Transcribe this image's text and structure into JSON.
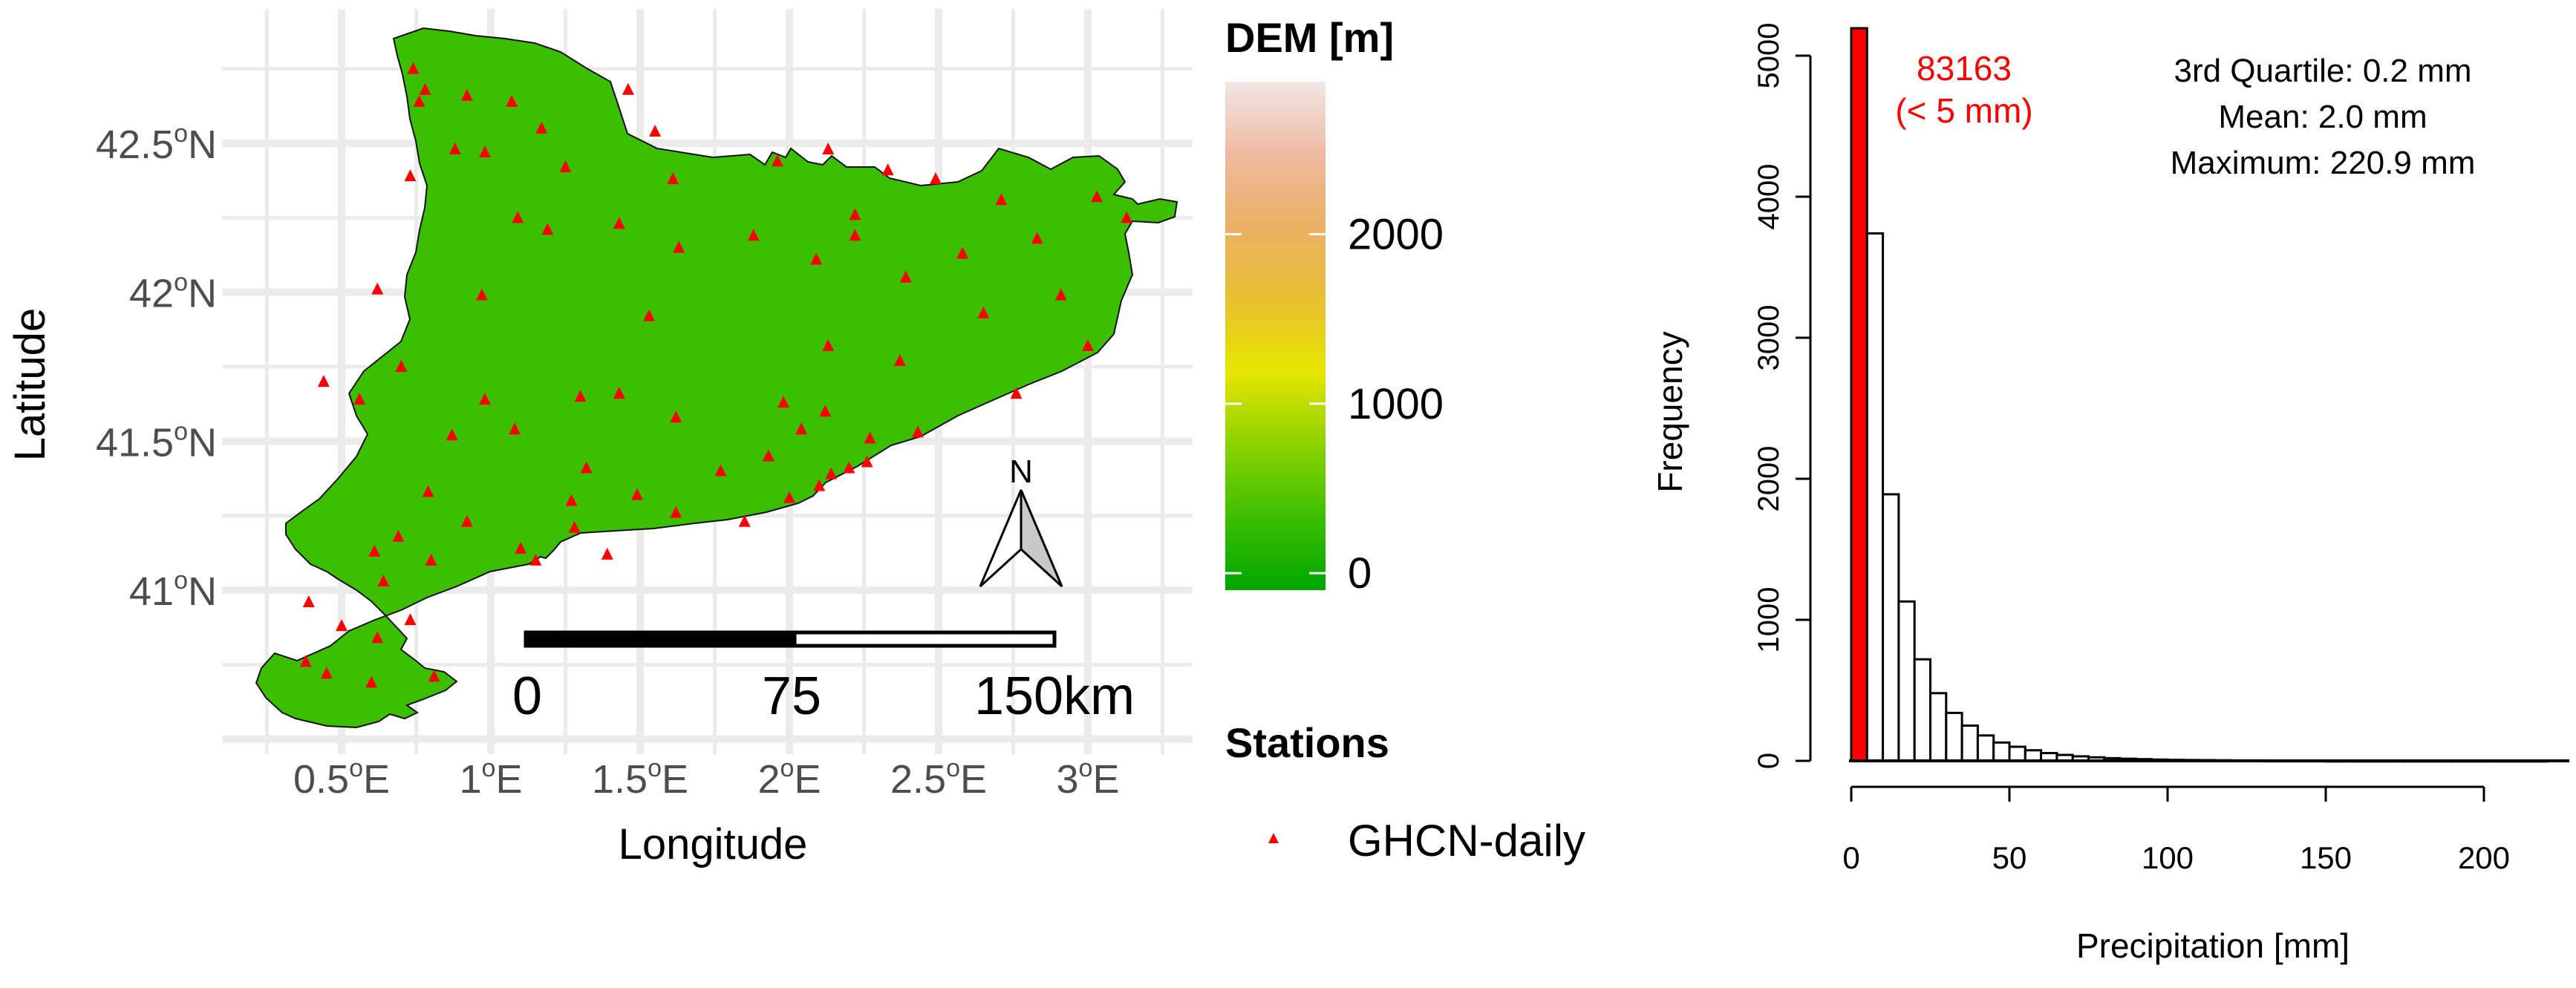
{
  "map_panel": {
    "xlabel": "Longitude",
    "ylabel": "Latitude",
    "lon_ticks": [
      {
        "value": 0.5,
        "label": "0.5",
        "unit": "E"
      },
      {
        "value": 1.0,
        "label": "1",
        "unit": "E"
      },
      {
        "value": 1.5,
        "label": "1.5",
        "unit": "E"
      },
      {
        "value": 2.0,
        "label": "2",
        "unit": "E"
      },
      {
        "value": 2.5,
        "label": "2.5",
        "unit": "E"
      },
      {
        "value": 3.0,
        "label": "3",
        "unit": "E"
      }
    ],
    "lat_ticks": [
      {
        "value": 41.0,
        "label": "41",
        "unit": "N"
      },
      {
        "value": 41.5,
        "label": "41.5",
        "unit": "N"
      },
      {
        "value": 42.0,
        "label": "42",
        "unit": "N"
      },
      {
        "value": 42.5,
        "label": "42.5",
        "unit": "N"
      }
    ],
    "degree_symbol": "o",
    "xlim": [
      0.1,
      3.35
    ],
    "ylim": [
      40.45,
      42.95
    ],
    "scale_bar_labels": [
      "0",
      "75",
      "150km"
    ],
    "north_arrow_label": "N",
    "background_color": "#ffffff",
    "grid_color": "#ebebeb",
    "dem_legend": {
      "title": "DEM [m]",
      "ticks": [
        0,
        1000,
        2000
      ],
      "range": [
        -100,
        2900
      ],
      "colors": [
        "#00a600",
        "#3cbf00",
        "#8bd200",
        "#e6e600",
        "#e8c032",
        "#ebb064",
        "#eeb99f",
        "#f1e8e6"
      ]
    },
    "stations_legend": {
      "title": "Stations",
      "label": "GHCN-daily",
      "marker_color": "#ff0000"
    },
    "stations": [
      [
        0.74,
        42.75
      ],
      [
        0.76,
        42.64
      ],
      [
        0.78,
        42.68
      ],
      [
        0.92,
        42.66
      ],
      [
        1.07,
        42.64
      ],
      [
        1.17,
        42.55
      ],
      [
        0.88,
        42.48
      ],
      [
        1.46,
        42.68
      ],
      [
        0.98,
        42.47
      ],
      [
        1.55,
        42.54
      ],
      [
        1.25,
        42.42
      ],
      [
        1.61,
        42.38
      ],
      [
        1.96,
        42.44
      ],
      [
        2.13,
        42.48
      ],
      [
        2.33,
        42.41
      ],
      [
        2.49,
        42.38
      ],
      [
        2.22,
        42.26
      ],
      [
        0.73,
        42.39
      ],
      [
        1.09,
        42.25
      ],
      [
        1.43,
        42.23
      ],
      [
        1.63,
        42.15
      ],
      [
        1.88,
        42.19
      ],
      [
        2.09,
        42.11
      ],
      [
        2.22,
        42.19
      ],
      [
        2.58,
        42.13
      ],
      [
        2.71,
        42.31
      ],
      [
        2.83,
        42.18
      ],
      [
        3.13,
        42.25
      ],
      [
        3.03,
        42.32
      ],
      [
        2.39,
        42.05
      ],
      [
        2.65,
        41.93
      ],
      [
        2.91,
        41.99
      ],
      [
        3.0,
        41.82
      ],
      [
        0.62,
        42.01
      ],
      [
        0.97,
        41.99
      ],
      [
        1.53,
        41.92
      ],
      [
        1.19,
        42.21
      ],
      [
        2.13,
        41.82
      ],
      [
        2.37,
        41.77
      ],
      [
        2.76,
        41.66
      ],
      [
        0.44,
        41.7
      ],
      [
        0.56,
        41.64
      ],
      [
        0.7,
        41.75
      ],
      [
        0.98,
        41.64
      ],
      [
        1.3,
        41.65
      ],
      [
        1.43,
        41.66
      ],
      [
        1.62,
        41.58
      ],
      [
        1.98,
        41.63
      ],
      [
        2.12,
        41.6
      ],
      [
        2.27,
        41.51
      ],
      [
        2.43,
        41.53
      ],
      [
        2.2,
        41.41
      ],
      [
        2.26,
        41.43
      ],
      [
        2.14,
        41.39
      ],
      [
        2.1,
        41.35
      ],
      [
        2.0,
        41.31
      ],
      [
        1.85,
        41.23
      ],
      [
        0.87,
        41.52
      ],
      [
        1.08,
        41.54
      ],
      [
        1.32,
        41.41
      ],
      [
        1.49,
        41.32
      ],
      [
        1.62,
        41.26
      ],
      [
        1.77,
        41.4
      ],
      [
        1.93,
        41.45
      ],
      [
        2.04,
        41.54
      ],
      [
        0.79,
        41.33
      ],
      [
        0.92,
        41.23
      ],
      [
        0.69,
        41.18
      ],
      [
        0.61,
        41.13
      ],
      [
        0.64,
        41.03
      ],
      [
        0.8,
        41.1
      ],
      [
        0.39,
        40.96
      ],
      [
        0.5,
        40.88
      ],
      [
        0.73,
        40.9
      ],
      [
        0.38,
        40.76
      ],
      [
        0.45,
        40.72
      ],
      [
        0.6,
        40.69
      ],
      [
        0.81,
        40.71
      ],
      [
        1.1,
        41.14
      ],
      [
        1.15,
        41.1
      ],
      [
        1.27,
        41.3
      ],
      [
        0.62,
        40.84
      ],
      [
        1.28,
        41.21
      ],
      [
        1.39,
        41.12
      ]
    ]
  },
  "chart_data": {
    "type": "bar",
    "title": "",
    "xlabel": "Precipitation [mm]",
    "ylabel": "Frequency",
    "xlim": [
      0,
      225
    ],
    "ylim": [
      0,
      5200
    ],
    "x_ticks": [
      0,
      50,
      100,
      150,
      200
    ],
    "y_ticks": [
      0,
      1000,
      2000,
      3000,
      4000,
      5000
    ],
    "bin_width": 5,
    "highlight": {
      "bin_start": 0,
      "bin_end": 5,
      "color": "#ff0000",
      "value": 83163,
      "label_line1": "83163",
      "label_line2": "(< 5 mm)"
    },
    "bins": [
      {
        "start": 5,
        "count": 3740
      },
      {
        "start": 10,
        "count": 1890
      },
      {
        "start": 15,
        "count": 1130
      },
      {
        "start": 20,
        "count": 720
      },
      {
        "start": 25,
        "count": 480
      },
      {
        "start": 30,
        "count": 340
      },
      {
        "start": 35,
        "count": 250
      },
      {
        "start": 40,
        "count": 180
      },
      {
        "start": 45,
        "count": 130
      },
      {
        "start": 50,
        "count": 100
      },
      {
        "start": 55,
        "count": 75
      },
      {
        "start": 60,
        "count": 55
      },
      {
        "start": 65,
        "count": 42
      },
      {
        "start": 70,
        "count": 32
      },
      {
        "start": 75,
        "count": 25
      },
      {
        "start": 80,
        "count": 19
      },
      {
        "start": 85,
        "count": 15
      },
      {
        "start": 90,
        "count": 12
      },
      {
        "start": 95,
        "count": 9
      },
      {
        "start": 100,
        "count": 7
      },
      {
        "start": 105,
        "count": 6
      },
      {
        "start": 110,
        "count": 5
      },
      {
        "start": 115,
        "count": 4
      },
      {
        "start": 120,
        "count": 3
      },
      {
        "start": 125,
        "count": 3
      },
      {
        "start": 130,
        "count": 2
      },
      {
        "start": 135,
        "count": 2
      },
      {
        "start": 140,
        "count": 2
      },
      {
        "start": 145,
        "count": 2
      },
      {
        "start": 150,
        "count": 1
      },
      {
        "start": 155,
        "count": 1
      },
      {
        "start": 160,
        "count": 1
      },
      {
        "start": 165,
        "count": 1
      },
      {
        "start": 170,
        "count": 1
      },
      {
        "start": 175,
        "count": 1
      },
      {
        "start": 180,
        "count": 1
      },
      {
        "start": 185,
        "count": 1
      },
      {
        "start": 190,
        "count": 1
      },
      {
        "start": 195,
        "count": 1
      },
      {
        "start": 200,
        "count": 1
      },
      {
        "start": 205,
        "count": 1
      },
      {
        "start": 210,
        "count": 1
      },
      {
        "start": 215,
        "count": 1
      }
    ],
    "annotations": [
      "3rd Quartile: 0.2 mm",
      "Mean: 2.0 mm",
      "Maximum: 220.9 mm"
    ]
  }
}
